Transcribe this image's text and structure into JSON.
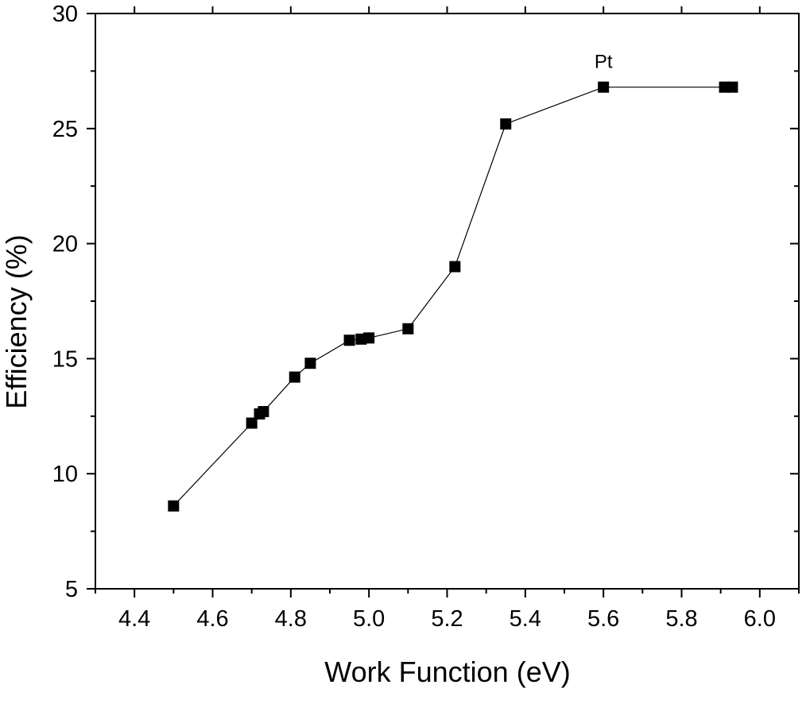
{
  "chart_data": {
    "type": "scatter",
    "title": "",
    "xlabel": "Work Function (eV)",
    "ylabel": "Efficiency (%)",
    "xlim": [
      4.3,
      6.1
    ],
    "ylim": [
      5,
      30
    ],
    "xticks": [
      4.4,
      4.6,
      4.8,
      5.0,
      5.2,
      5.4,
      5.6,
      5.8,
      6.0
    ],
    "xtick_labels": [
      "4.4",
      "4.6",
      "4.8",
      "5.0",
      "5.2",
      "5.4",
      "5.6",
      "5.8",
      "6.0"
    ],
    "yticks": [
      5,
      10,
      15,
      20,
      25,
      30
    ],
    "ytick_labels": [
      "5",
      "10",
      "15",
      "20",
      "25",
      "30"
    ],
    "grid": false,
    "connected": true,
    "marker": "square",
    "series": [
      {
        "color": "#000000",
        "x": [
          4.5,
          4.7,
          4.72,
          4.73,
          4.81,
          4.85,
          4.95,
          4.98,
          5.0,
          5.1,
          5.22,
          5.35,
          5.6,
          5.91,
          5.93
        ],
        "y": [
          8.6,
          12.2,
          12.6,
          12.7,
          14.2,
          14.8,
          15.8,
          15.85,
          15.9,
          16.3,
          19.0,
          25.2,
          26.8,
          26.8,
          26.8
        ]
      }
    ],
    "annotations": [
      {
        "text": "Pt",
        "x": 5.6,
        "y": 26.8
      }
    ]
  }
}
